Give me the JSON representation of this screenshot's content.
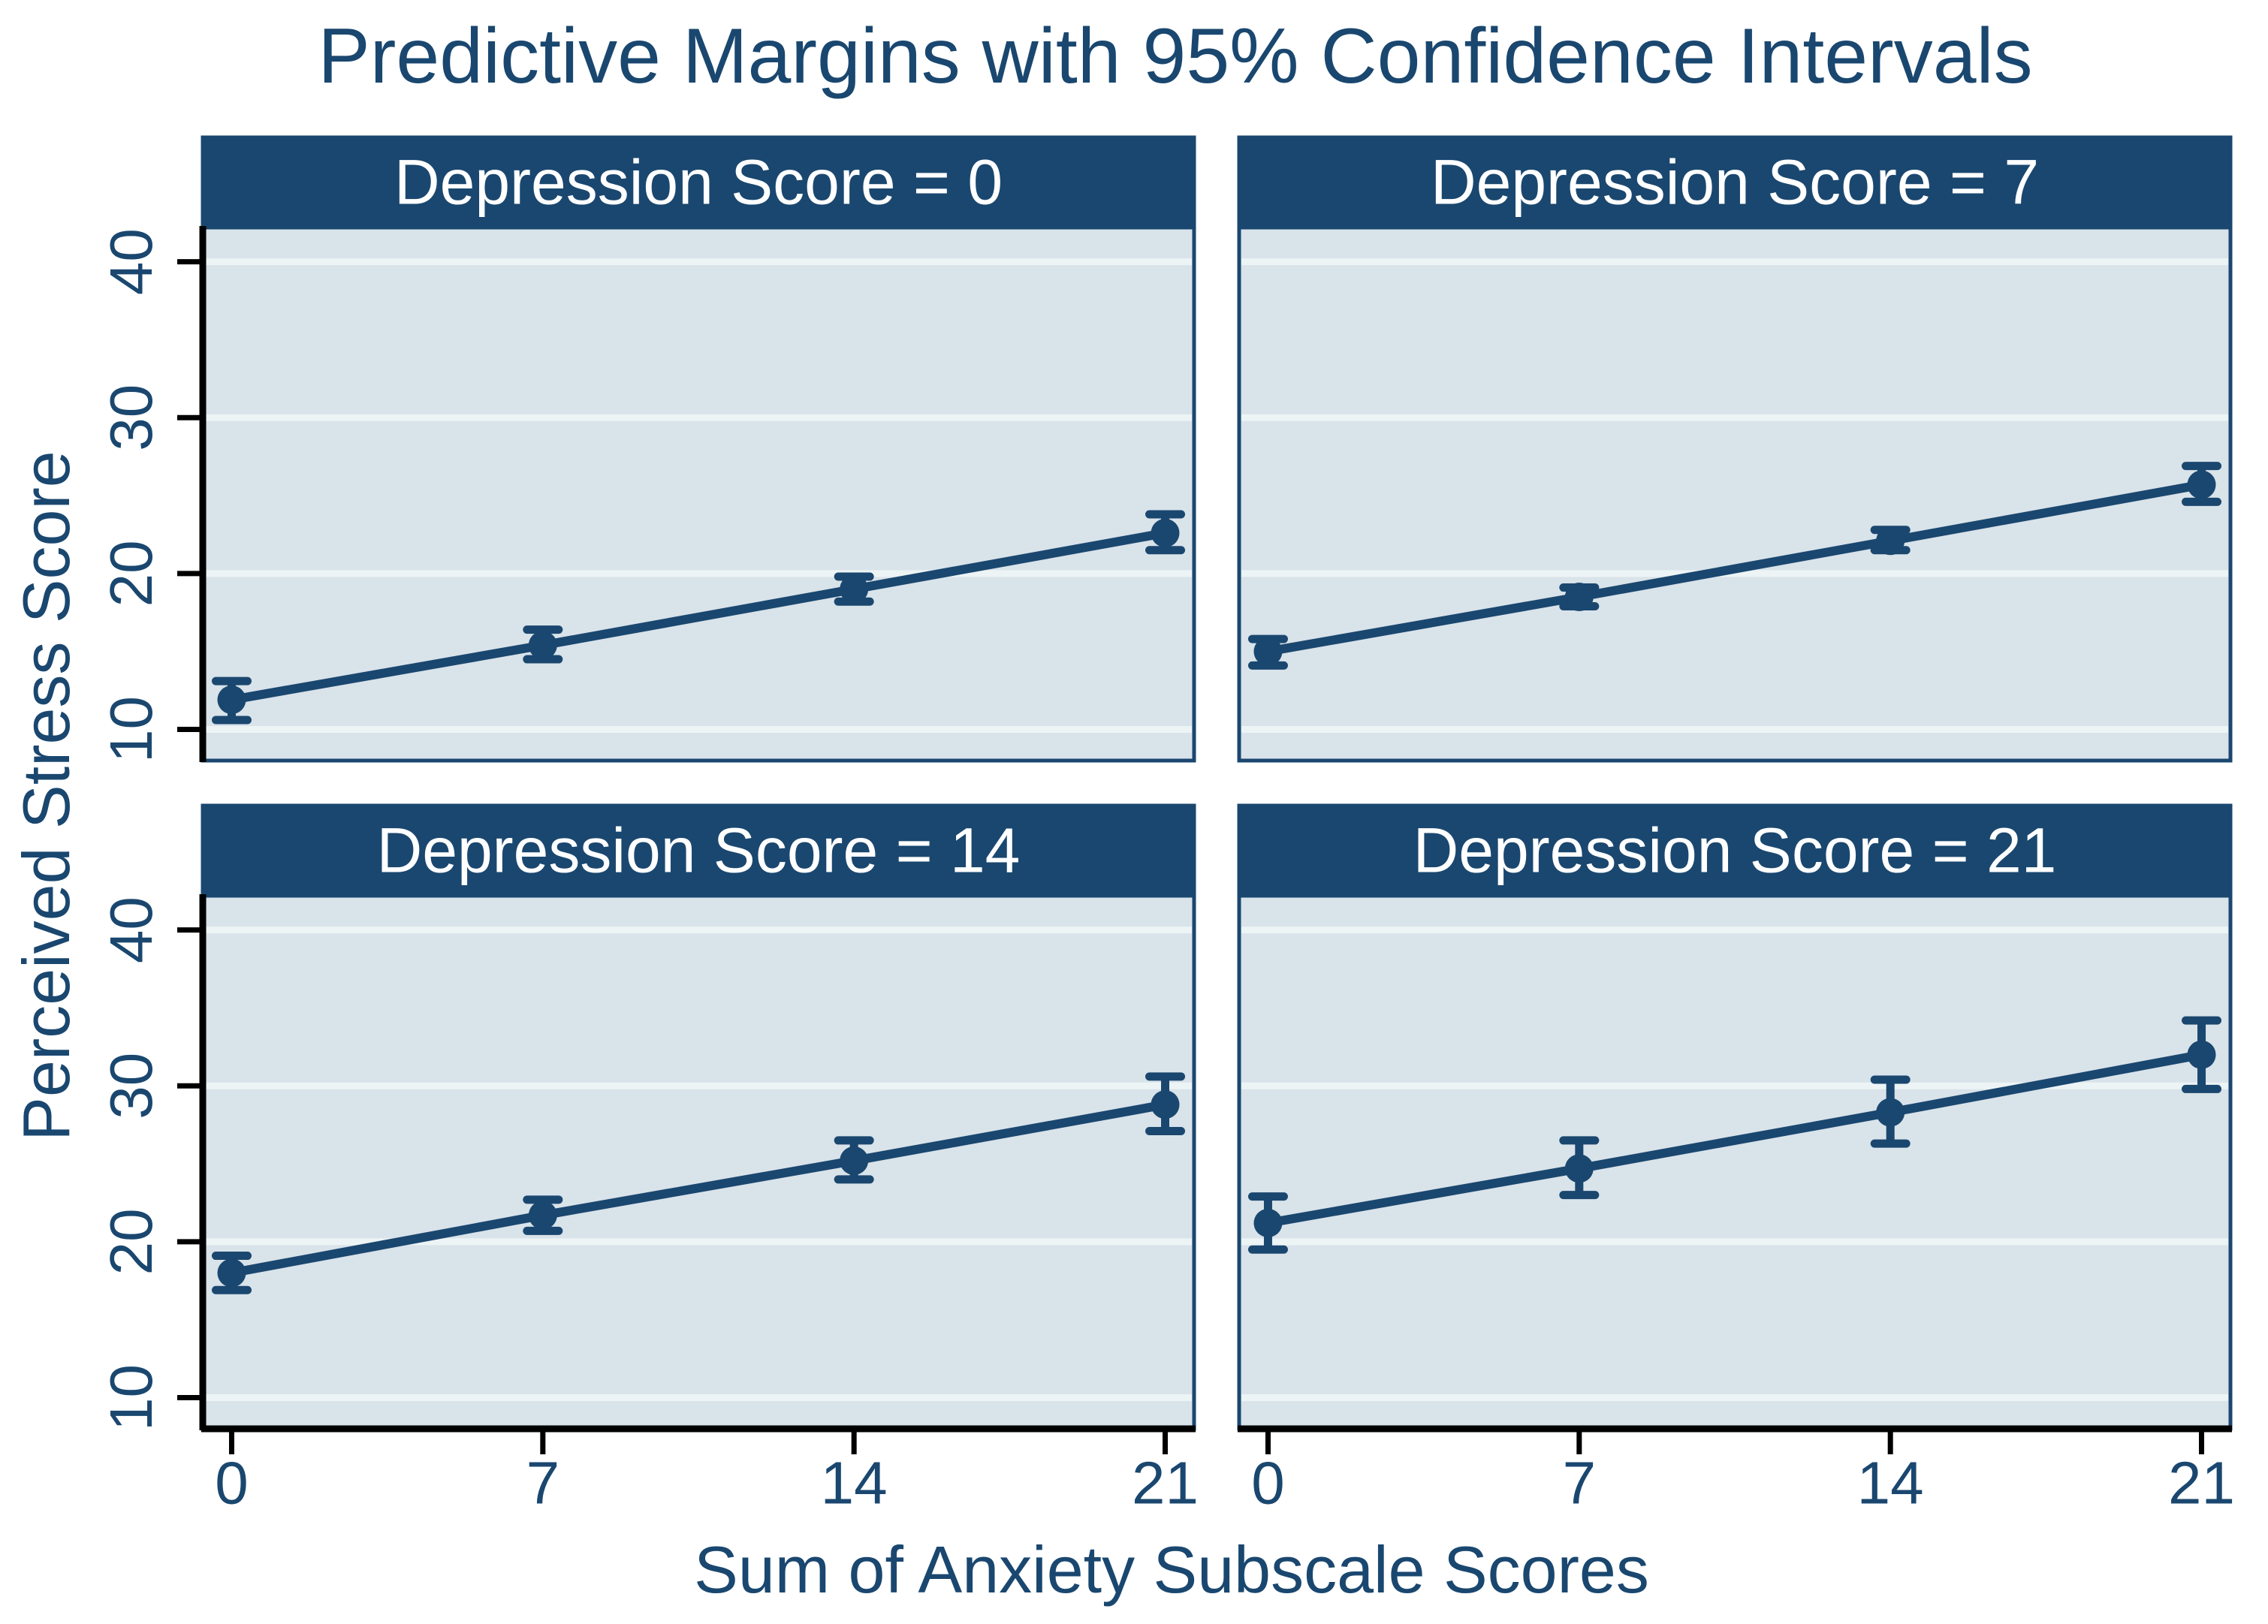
{
  "title": "Predictive Margins with 95% Confidence Intervals",
  "xlabel": "Sum of Anxiety Subscale Scores",
  "ylabel": "Perceived Stress Score",
  "colors": {
    "accent_navy": "#1A476F",
    "plot_background": "#D9E3EA",
    "gridline": "#EDF4F5",
    "header_background": "#1A476F",
    "header_text": "#FFFFFF",
    "axis_black": "#000000",
    "page_background": "#FFFFFF"
  },
  "chart_data": {
    "type": "line",
    "x": [
      0,
      7,
      14,
      21
    ],
    "x_tick_labels": [
      "0",
      "7",
      "14",
      "21"
    ],
    "y_tick_labels": [
      "10",
      "20",
      "30",
      "40"
    ],
    "y_ticks": [
      10,
      20,
      30,
      40
    ],
    "xlim": [
      -0.65,
      21.65
    ],
    "ylim": [
      8.0,
      42.2
    ],
    "grid": "on",
    "legend": "none",
    "error_bars": "95% confidence intervals",
    "panels": [
      {
        "label": "Depression Score = 0",
        "means": [
          11.9,
          15.4,
          19.0,
          22.6
        ],
        "ci_low": [
          10.6,
          14.5,
          18.2,
          21.5
        ],
        "ci_high": [
          13.1,
          16.4,
          19.8,
          23.8
        ]
      },
      {
        "label": "Depression Score = 7",
        "means": [
          15.0,
          18.5,
          22.1,
          25.7
        ],
        "ci_low": [
          14.1,
          17.9,
          21.5,
          24.6
        ],
        "ci_high": [
          15.8,
          19.1,
          22.8,
          26.9
        ]
      },
      {
        "label": "Depression Score = 14",
        "means": [
          18.0,
          21.7,
          25.2,
          28.8
        ],
        "ci_low": [
          16.9,
          20.7,
          24.0,
          27.1
        ],
        "ci_high": [
          19.1,
          22.7,
          26.5,
          30.6
        ]
      },
      {
        "label": "Depression Score = 21",
        "means": [
          21.2,
          24.7,
          28.3,
          32.0
        ],
        "ci_low": [
          19.5,
          23.0,
          26.3,
          29.8
        ],
        "ci_high": [
          22.9,
          26.5,
          30.4,
          34.2
        ]
      }
    ]
  }
}
